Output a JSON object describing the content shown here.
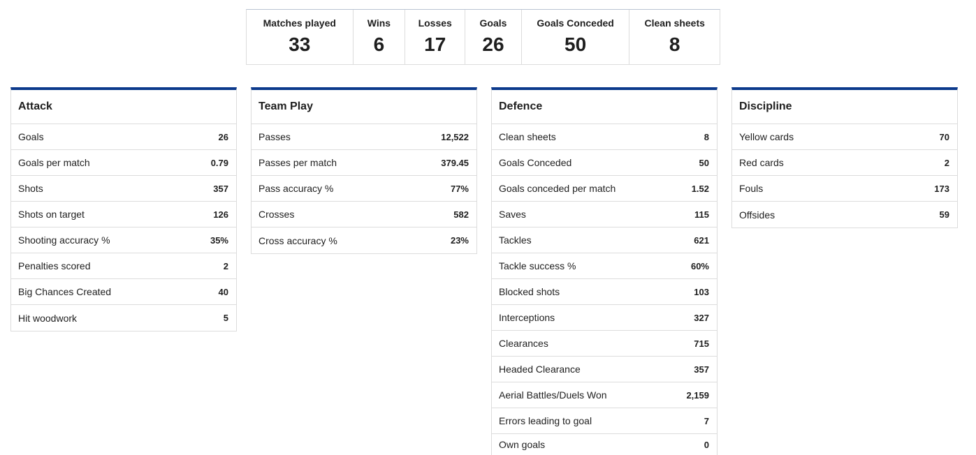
{
  "summary": [
    {
      "label": "Matches played",
      "value": "33"
    },
    {
      "label": "Wins",
      "value": "6"
    },
    {
      "label": "Losses",
      "value": "17"
    },
    {
      "label": "Goals",
      "value": "26"
    },
    {
      "label": "Goals Conceded",
      "value": "50"
    },
    {
      "label": "Clean sheets",
      "value": "8"
    }
  ],
  "attack": {
    "title": "Attack",
    "rows": [
      {
        "label": "Goals",
        "value": "26"
      },
      {
        "label": "Goals per match",
        "value": "0.79"
      },
      {
        "label": "Shots",
        "value": "357"
      },
      {
        "label": "Shots on target",
        "value": "126"
      },
      {
        "label": "Shooting accuracy %",
        "value": "35%"
      },
      {
        "label": "Penalties scored",
        "value": "2"
      },
      {
        "label": "Big Chances Created",
        "value": "40"
      },
      {
        "label": "Hit woodwork",
        "value": "5"
      }
    ]
  },
  "teamplay": {
    "title": "Team Play",
    "rows": [
      {
        "label": "Passes",
        "value": "12,522"
      },
      {
        "label": "Passes per match",
        "value": "379.45"
      },
      {
        "label": "Pass accuracy %",
        "value": "77%"
      },
      {
        "label": "Crosses",
        "value": "582"
      },
      {
        "label": "Cross accuracy %",
        "value": "23%"
      }
    ]
  },
  "defence": {
    "title": "Defence",
    "rows": [
      {
        "label": "Clean sheets",
        "value": "8"
      },
      {
        "label": "Goals Conceded",
        "value": "50"
      },
      {
        "label": "Goals conceded per match",
        "value": "1.52"
      },
      {
        "label": "Saves",
        "value": "115"
      },
      {
        "label": "Tackles",
        "value": "621"
      },
      {
        "label": "Tackle success %",
        "value": "60%"
      },
      {
        "label": "Blocked shots",
        "value": "103"
      },
      {
        "label": "Interceptions",
        "value": "327"
      },
      {
        "label": "Clearances",
        "value": "715"
      },
      {
        "label": "Headed Clearance",
        "value": "357"
      },
      {
        "label": "Aerial Battles/Duels Won",
        "value": "2,159"
      },
      {
        "label": "Errors leading to goal",
        "value": "7"
      },
      {
        "label": "Own goals",
        "value": "0"
      }
    ]
  },
  "discipline": {
    "title": "Discipline",
    "rows": [
      {
        "label": "Yellow cards",
        "value": "70"
      },
      {
        "label": "Red cards",
        "value": "2"
      },
      {
        "label": "Fouls",
        "value": "173"
      },
      {
        "label": "Offsides",
        "value": "59"
      }
    ]
  },
  "colors": {
    "accent": "#0c3a8c",
    "border": "#dcdcdc",
    "text": "#1e1e1e"
  }
}
